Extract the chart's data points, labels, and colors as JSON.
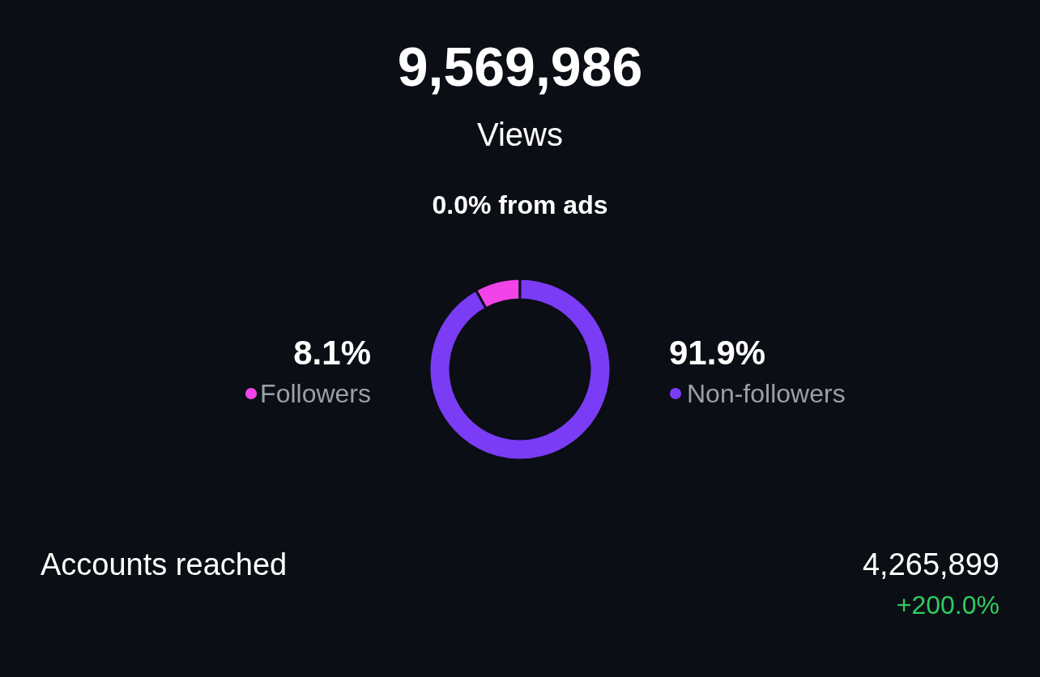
{
  "chart_data": {
    "type": "donut",
    "title": "9,569,986",
    "subtitle": "Views",
    "categories": [
      "Followers",
      "Non-followers"
    ],
    "values": [
      8.1,
      91.9
    ],
    "colors": [
      "#f043e8",
      "#7b3cf5"
    ],
    "value_labels": [
      "8.1%",
      "91.9%"
    ],
    "legend": "right",
    "annotations": [
      "0.0% from ads",
      "Accounts reached",
      "4,265,899",
      "+200.0%"
    ]
  }
}
